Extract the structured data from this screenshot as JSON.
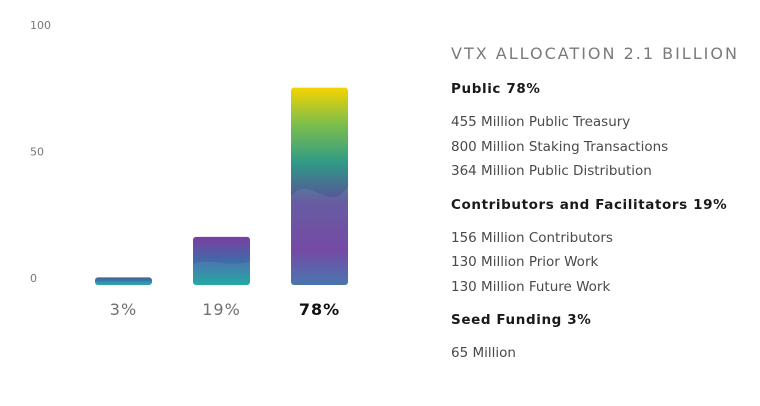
{
  "chart_data": {
    "type": "bar",
    "categories": [
      "3%",
      "19%",
      "78%"
    ],
    "values": [
      3,
      19,
      78
    ],
    "ylim": [
      0,
      100
    ],
    "yticks": [
      0,
      50,
      100
    ],
    "title": "",
    "xlabel": "",
    "ylabel": "",
    "grid": false,
    "highlight_index": 2,
    "colors": [
      "#1b9a9e",
      "#7b3fa0",
      "#f1d000"
    ]
  },
  "allocation": {
    "title": "VTX ALLOCATION 2.1 BILLION",
    "sections": [
      {
        "heading": "Public 78%",
        "items": [
          "455 Million Public Treasury",
          "800 Million Staking Transactions",
          "364 Million Public Distribution"
        ]
      },
      {
        "heading": "Contributors and Facilitators 19%",
        "items": [
          "156 Million Contributors",
          "130 Million Prior Work",
          "130 Million Future Work"
        ]
      },
      {
        "heading": "Seed Funding 3%",
        "items": [
          "65 Million"
        ]
      }
    ]
  }
}
